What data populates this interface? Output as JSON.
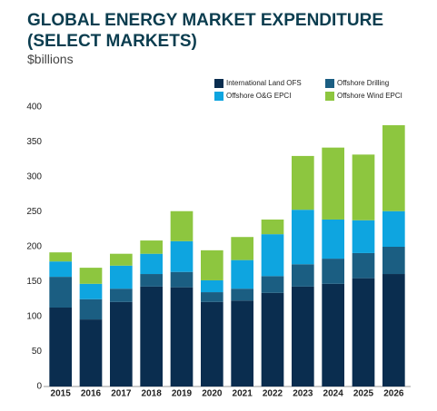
{
  "chart_data": {
    "type": "stacked_bar",
    "title": "GLOBAL ENERGY MARKET EXPENDITURE",
    "title_line2": "(SELECT MARKETS)",
    "subtitle": "$billions",
    "categories": [
      "2015",
      "2016",
      "2017",
      "2018",
      "2019",
      "2020",
      "2021",
      "2022",
      "2023",
      "2024",
      "2025",
      "2026"
    ],
    "series": [
      {
        "name": "International Land OFS",
        "color": "#0a2d4f",
        "values": [
          113,
          96,
          121,
          143,
          142,
          121,
          123,
          134,
          143,
          147,
          155,
          161
        ]
      },
      {
        "name": "Offshore Drilling",
        "color": "#1b5e82",
        "values": [
          44,
          29,
          19,
          18,
          22,
          14,
          17,
          24,
          32,
          36,
          36,
          39
        ]
      },
      {
        "name": "Offshore O&G EPCI",
        "color": "#0ea5e0",
        "values": [
          22,
          22,
          33,
          29,
          44,
          17,
          41,
          60,
          78,
          56,
          47,
          51
        ]
      },
      {
        "name": "Offshore Wind EPCI",
        "color": "#8dc63f",
        "values": [
          13,
          23,
          17,
          19,
          43,
          43,
          33,
          21,
          77,
          103,
          94,
          123
        ]
      }
    ],
    "ylim": [
      0,
      400
    ],
    "yticks": [
      0,
      50,
      100,
      150,
      200,
      250,
      300,
      350,
      400
    ],
    "grid": false
  }
}
